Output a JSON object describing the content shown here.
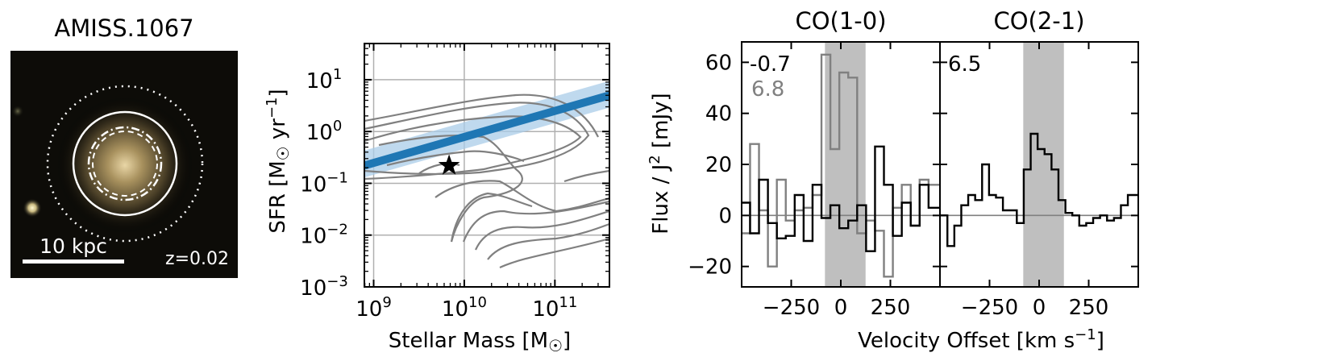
{
  "galaxy": {
    "title": "AMISS.1067",
    "scalebar_label": "10 kpc",
    "redshift_label": "z=0.02"
  },
  "sfms": {
    "ylabel_main": "SFR [M",
    "ylabel_tail": " yr",
    "ylabel_sup": "−1",
    "ylabel_close": "]",
    "xlabel_main": "Stellar Mass [M",
    "xlabel_close": "]",
    "sun_symbol": "☉",
    "x_ticks": [
      {
        "exp": "9",
        "value": 1000000000
      },
      {
        "exp": "10",
        "value": 10000000000
      },
      {
        "exp": "11",
        "value": 100000000000
      }
    ],
    "y_ticks": [
      {
        "exp": "1",
        "value": 10
      },
      {
        "exp": "0",
        "value": 1
      },
      {
        "exp": "−1",
        "value": 0.1
      },
      {
        "exp": "−2",
        "value": 0.01
      },
      {
        "exp": "−3",
        "value": 0.001
      }
    ],
    "tick_base": "10",
    "colors": {
      "main_sequence": "#1f77b4",
      "band": "#a9cce8",
      "contour": "#808080"
    }
  },
  "spectra": {
    "ylabel_main": "Flux / J",
    "ylabel_sup": "2",
    "ylabel_close": " [mJy]",
    "xlabel_main": "Velocity Offset [km s",
    "xlabel_sup": "−1",
    "xlabel_close": "]",
    "y_ticks": [
      "60",
      "40",
      "20",
      "0",
      "−20"
    ],
    "x_ticks": [
      "−250",
      "0",
      "250"
    ],
    "panels": [
      {
        "title": "CO(1-0)",
        "value_black": "-0.7",
        "value_gray": "6.8"
      },
      {
        "title": "CO(2-1)",
        "value_black": "6.5"
      }
    ],
    "colors": {
      "line_black": "#000000",
      "line_gray": "#808080",
      "shade": "#bfbfbf"
    }
  },
  "chart_data": [
    {
      "type": "image",
      "title": "AMISS.1067",
      "annotations": [
        "10 kpc",
        "z=0.02"
      ]
    },
    {
      "type": "scatter",
      "xlabel": "Stellar Mass [M☉]",
      "ylabel": "SFR [M☉ yr−1]",
      "xscale": "log",
      "yscale": "log",
      "xlim": [
        790000000,
        400000000000
      ],
      "ylim": [
        0.001,
        50
      ],
      "grid": true,
      "main_sequence": {
        "x": [
          790000000,
          400000000000
        ],
        "y": [
          0.22,
          5.0
        ],
        "band_low": [
          0.13,
          2.9
        ],
        "band_high": [
          0.43,
          9.5
        ]
      },
      "points": [
        {
          "x": 6800000000,
          "y": 0.22,
          "marker": "star"
        }
      ]
    },
    {
      "type": "line",
      "title": "CO(1-0)",
      "xlabel": "Velocity Offset [km s−1]",
      "ylabel": "Flux / J2 [mJy]",
      "xlim": [
        -500,
        500
      ],
      "ylim": [
        -28,
        68
      ],
      "shaded_region": [
        -80,
        125
      ],
      "series": [
        {
          "name": "CO(1-0) black",
          "value_label": "-0.7",
          "x": [
            -480,
            -435,
            -390,
            -345,
            -300,
            -255,
            -210,
            -165,
            -120,
            -75,
            -30,
            15,
            60,
            105,
            150,
            195,
            240,
            285,
            330,
            375,
            420,
            465
          ],
          "y": [
            5,
            -7,
            14,
            -3,
            -9,
            -8,
            8,
            -10,
            12,
            -1,
            4,
            -5,
            -2,
            4,
            -14,
            27,
            12,
            -8,
            5,
            -4,
            12,
            3
          ]
        },
        {
          "name": "CO(1-0) gray",
          "value_label": "6.8",
          "x": [
            -480,
            -435,
            -390,
            -345,
            -300,
            -255,
            -210,
            -165,
            -120,
            -75,
            -30,
            15,
            60,
            105,
            150,
            195,
            240,
            285,
            330,
            375,
            420,
            465
          ],
          "y": [
            -7,
            28,
            2,
            -20,
            14,
            -2,
            2,
            3,
            8,
            63,
            26,
            56,
            54,
            -7,
            -2,
            -6,
            -24,
            3,
            12,
            -4,
            14,
            12
          ]
        }
      ]
    },
    {
      "type": "line",
      "title": "CO(2-1)",
      "xlabel": "Velocity Offset [km s−1]",
      "ylabel": "Flux / J2 [mJy]",
      "xlim": [
        -500,
        500
      ],
      "ylim": [
        -28,
        68
      ],
      "shaded_region": [
        -80,
        125
      ],
      "series": [
        {
          "name": "CO(2-1) black",
          "value_label": "6.5",
          "x": [
            -480,
            -445,
            -410,
            -375,
            -340,
            -305,
            -270,
            -235,
            -200,
            -165,
            -130,
            -95,
            -60,
            -25,
            10,
            45,
            80,
            115,
            150,
            185,
            220,
            255,
            290,
            325,
            360,
            395,
            430,
            465
          ],
          "y": [
            0,
            -12,
            -4,
            4,
            8,
            6,
            20,
            8,
            7,
            2,
            2,
            -3,
            18,
            32,
            26,
            24,
            18,
            6,
            1,
            0,
            -4,
            -3,
            -1,
            0,
            -2,
            -1,
            4,
            8
          ]
        }
      ]
    }
  ]
}
